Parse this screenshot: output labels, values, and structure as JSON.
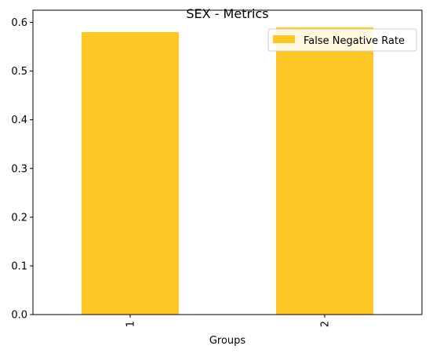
{
  "chart_data": {
    "type": "bar",
    "title": "SEX - Metrics",
    "xlabel": "Groups",
    "ylabel": "",
    "categories": [
      "1",
      "2"
    ],
    "series": [
      {
        "name": "False Negative Rate",
        "values": [
          0.58,
          0.59
        ],
        "color": "#ffc725"
      }
    ],
    "ylim": [
      0,
      0.625
    ],
    "yticks": [
      0.0,
      0.1,
      0.2,
      0.3,
      0.4,
      0.5,
      0.6
    ],
    "ytick_labels": [
      "0.0",
      "0.1",
      "0.2",
      "0.3",
      "0.4",
      "0.5",
      "0.6"
    ],
    "grid": false,
    "legend_position": "top-right",
    "xtick_rotation": -90
  }
}
